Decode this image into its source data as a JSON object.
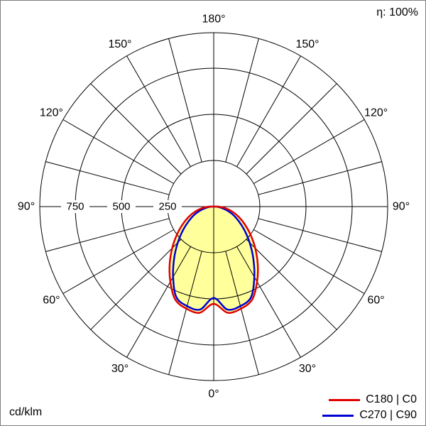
{
  "meta": {
    "efficiency_label": "η: 100%",
    "unit_label": "cd/klm"
  },
  "legend": [
    {
      "label": "C180 | C0",
      "color": "#e00000"
    },
    {
      "label": "C270 | C90",
      "color": "#0000d0"
    }
  ],
  "chart_data": {
    "type": "polar",
    "unit": "cd/klm",
    "efficiency": "η: 100%",
    "angle_tick_values_deg": [
      0,
      30,
      60,
      90,
      120,
      150,
      180
    ],
    "angle_tick_labels": [
      "0°",
      "30°",
      "60°",
      "90°",
      "120°",
      "150°",
      "180°"
    ],
    "spoke_step_deg": 15,
    "radial_tick_values": [
      250,
      500,
      750
    ],
    "radial_tick_labels": [
      "250",
      "500",
      "750"
    ],
    "grid_color": "#000000",
    "fill_color": "#ffff9c",
    "series_angles_deg": [
      0,
      7.5,
      15,
      22.5,
      30,
      37.5,
      45,
      52.5,
      60,
      67.5,
      75,
      82.5,
      90
    ],
    "series": [
      {
        "name": "C180 | C0",
        "color": "#e00000",
        "symmetric": true,
        "values_cd_klm": [
          527,
          580,
          572,
          545,
          470,
          392,
          318,
          252,
          196,
          148,
          104,
          62,
          25
        ]
      },
      {
        "name": "C270 | C90",
        "color": "#0000d0",
        "symmetric": true,
        "values_cd_klm": [
          495,
          562,
          558,
          530,
          440,
          352,
          275,
          210,
          156,
          112,
          70,
          36,
          14
        ]
      }
    ]
  }
}
